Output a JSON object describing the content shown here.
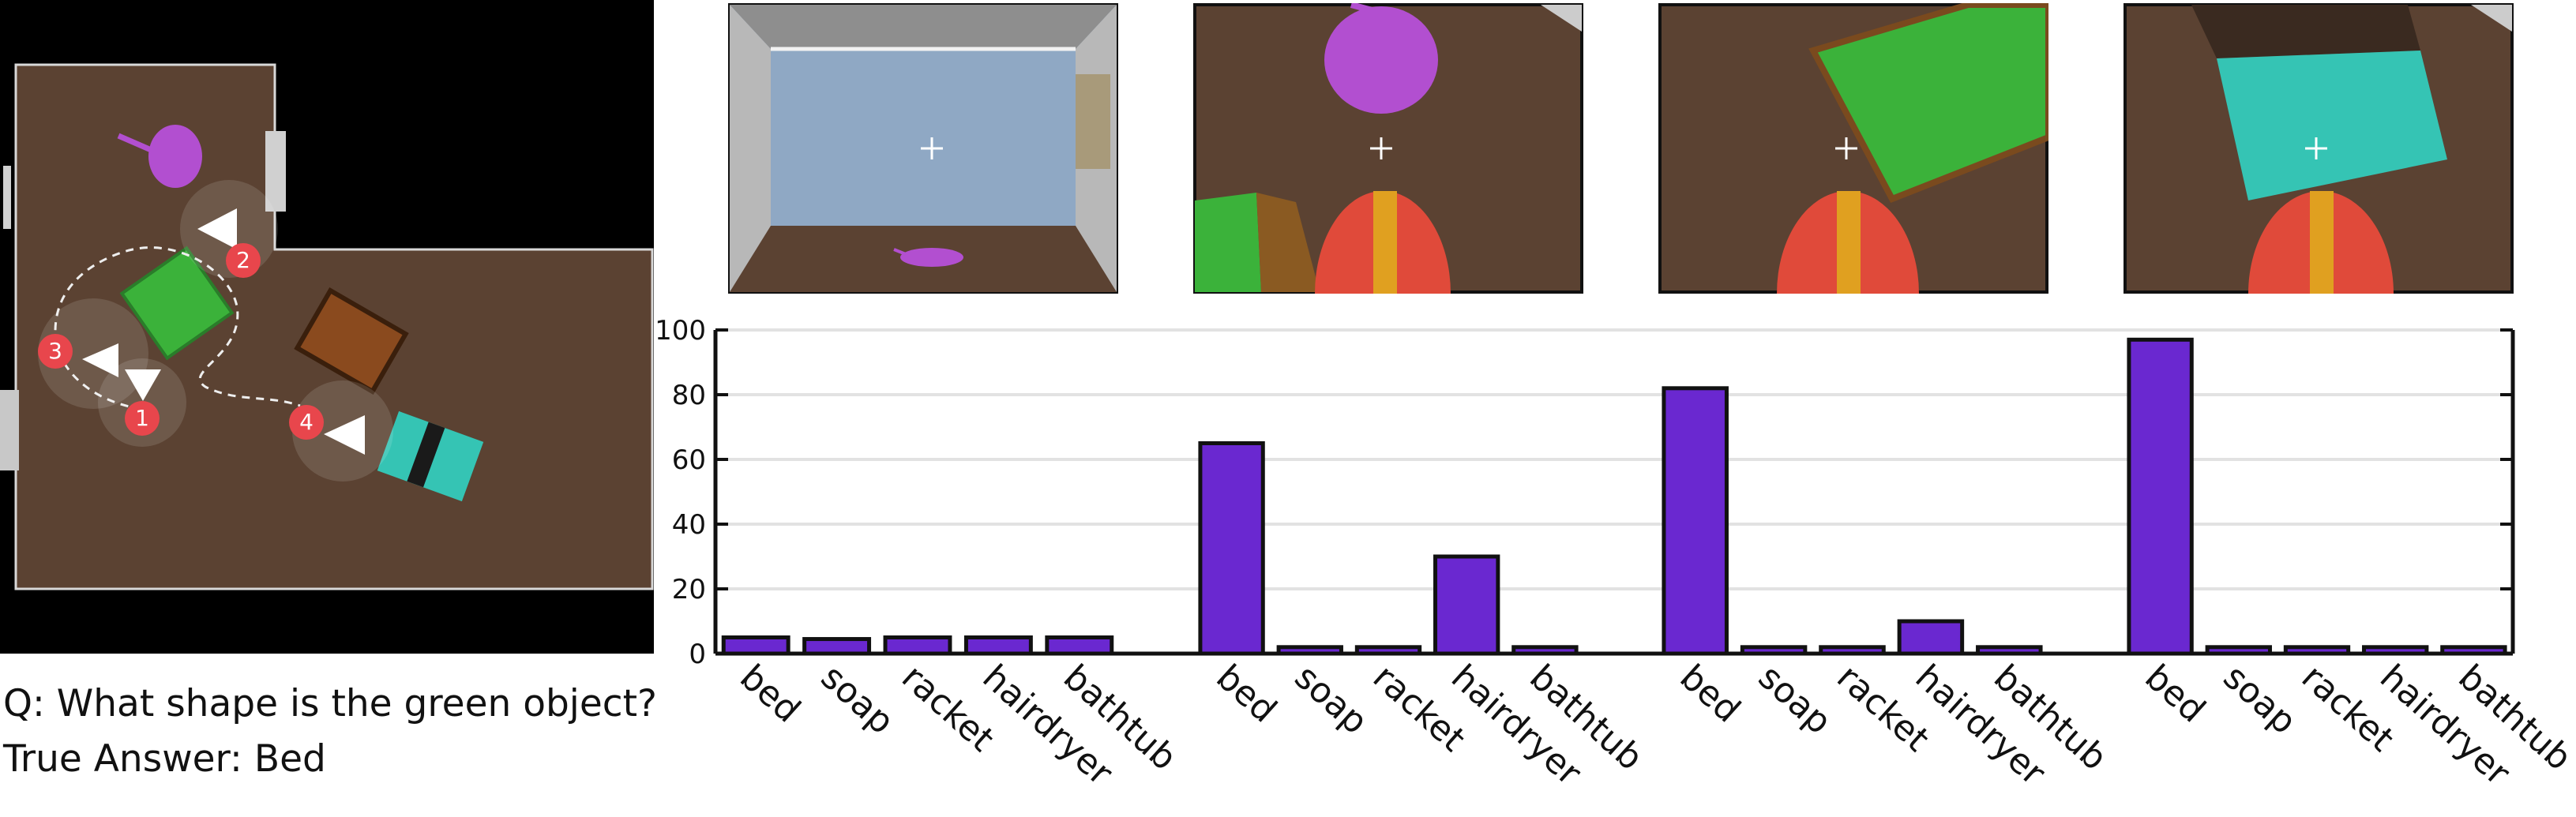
{
  "question": "Q: What shape is the green object?",
  "true_answer": "True Answer: Bed",
  "map": {
    "waypoints": [
      "1",
      "2",
      "3",
      "4"
    ],
    "colors": {
      "floor": "#5b4232",
      "background": "#000000",
      "marker": "#e8464c",
      "green_object": "#3bb23a",
      "teal_object": "#35c4b4",
      "racket": "#b24fd0",
      "wood_object": "#8a4a1e"
    }
  },
  "views": [
    {
      "content": "room-wide",
      "crosshair": true
    },
    {
      "content": "racket-closeup",
      "crosshair": true
    },
    {
      "content": "green-closeup",
      "crosshair": true
    },
    {
      "content": "teal-closeup",
      "crosshair": true
    }
  ],
  "bar_color": "#6a28d0",
  "chart_data": [
    {
      "type": "bar",
      "categories": [
        "bed",
        "soap",
        "racket",
        "hairdryer",
        "bathtub"
      ],
      "values": [
        5,
        4.5,
        5,
        5,
        5
      ],
      "ylim": [
        0,
        100
      ],
      "yticks": [
        "0",
        "20",
        "40",
        "60",
        "80",
        "100"
      ],
      "grid": true
    },
    {
      "type": "bar",
      "categories": [
        "bed",
        "soap",
        "racket",
        "hairdryer",
        "bathtub"
      ],
      "values": [
        65,
        2,
        2,
        30,
        2
      ],
      "ylim": [
        0,
        100
      ],
      "grid": true
    },
    {
      "type": "bar",
      "categories": [
        "bed",
        "soap",
        "racket",
        "hairdryer",
        "bathtub"
      ],
      "values": [
        82,
        2,
        2,
        10,
        2
      ],
      "ylim": [
        0,
        100
      ],
      "grid": true
    },
    {
      "type": "bar",
      "categories": [
        "bed",
        "soap",
        "racket",
        "hairdryer",
        "bathtub"
      ],
      "values": [
        97,
        2,
        2,
        2,
        2
      ],
      "ylim": [
        0,
        100
      ],
      "grid": true
    }
  ]
}
